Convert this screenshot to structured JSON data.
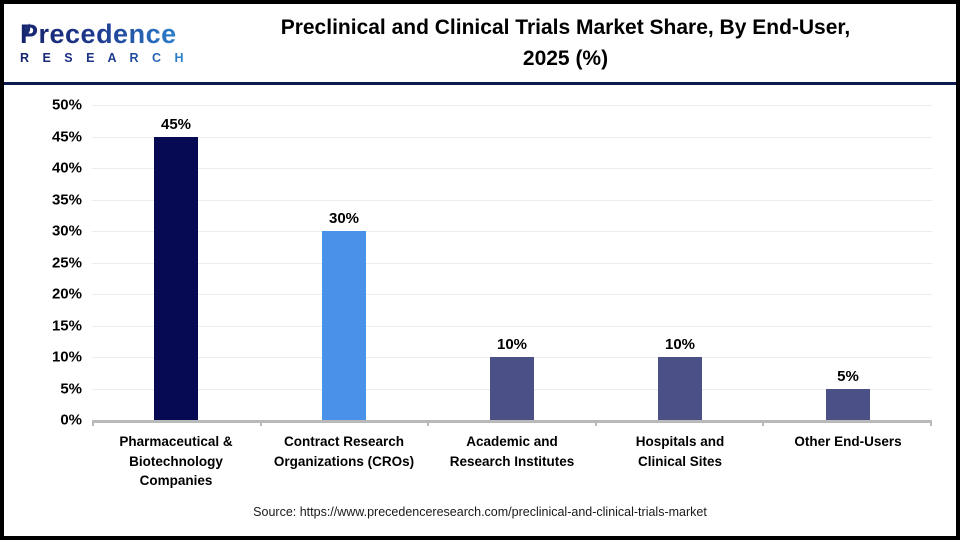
{
  "header": {
    "logo": {
      "brand": "Precedence",
      "sub": "R E S E A R C H"
    },
    "title_line1": "Preclinical and Clinical Trials Market Share, By End-User,",
    "title_line2": "2025 (%)"
  },
  "chart_data": {
    "type": "bar",
    "title": "Preclinical and Clinical Trials Market Share, By End-User, 2025 (%)",
    "categories": [
      "Pharmaceutical & Biotechnology Companies",
      "Contract Research Organizations (CROs)",
      "Academic and Research Institutes",
      "Hospitals and Clinical Sites",
      "Other End-Users"
    ],
    "categories_wrapped": [
      [
        "Pharmaceutical &",
        "Biotechnology",
        "Companies"
      ],
      [
        "Contract Research",
        "Organizations (CROs)"
      ],
      [
        "Academic and",
        "Research Institutes"
      ],
      [
        "Hospitals and",
        "Clinical Sites"
      ],
      [
        "Other End-Users"
      ]
    ],
    "values": [
      45,
      30,
      10,
      10,
      5
    ],
    "value_labels": [
      "45%",
      "30%",
      "10%",
      "10%",
      "5%"
    ],
    "bar_colors": [
      "#060a52",
      "#4a91e9",
      "#4b5086",
      "#4b5086",
      "#4b5086"
    ],
    "xlabel": "",
    "ylabel": "",
    "ylim": [
      0,
      50
    ],
    "ytick_step": 5,
    "ytick_labels": [
      "0%",
      "5%",
      "10%",
      "15%",
      "20%",
      "25%",
      "30%",
      "35%",
      "40%",
      "45%",
      "50%"
    ],
    "grid": "horizontal",
    "legend": "none"
  },
  "footer": {
    "source": "Source: https://www.precedenceresearch.com/preclinical-and-clinical-trials-market"
  }
}
